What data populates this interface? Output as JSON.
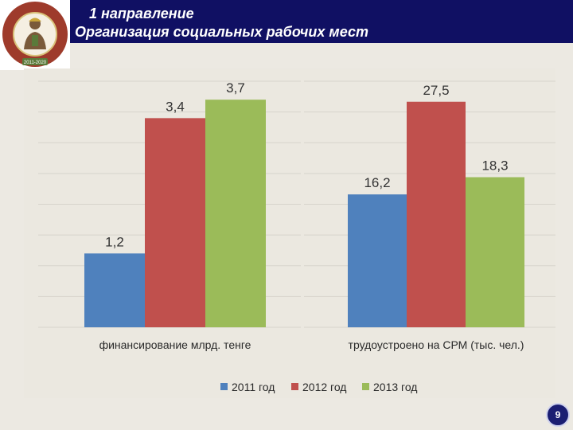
{
  "header": {
    "title_line1": "1 направление",
    "title_line2": "Организация социальных рабочих мест"
  },
  "logo": {
    "ring_text": "ПРОГРАММА ЗАНЯТОСТИ",
    "years": "2011-2020"
  },
  "colors": {
    "header_bg": "#101063",
    "series_2011": "#4f81bd",
    "series_2012": "#c0504d",
    "series_2013": "#9bbb59"
  },
  "chart_data": [
    {
      "type": "bar",
      "categories": [
        "финансирование млрд. тенге"
      ],
      "series": [
        {
          "name": "2011 год",
          "values": [
            1.2
          ]
        },
        {
          "name": "2012 год",
          "values": [
            3.4
          ]
        },
        {
          "name": "2013 год",
          "values": [
            3.7
          ]
        }
      ],
      "data_labels": [
        "1,2",
        "3,4",
        "3,7"
      ],
      "ylim": [
        0,
        4
      ],
      "grid": true
    },
    {
      "type": "bar",
      "categories": [
        "трудоустроено на СРМ (тыс. чел.)"
      ],
      "series": [
        {
          "name": "2011 год",
          "values": [
            16.2
          ]
        },
        {
          "name": "2012 год",
          "values": [
            27.5
          ]
        },
        {
          "name": "2013 год",
          "values": [
            18.3
          ]
        }
      ],
      "data_labels": [
        "16,2",
        "27,5",
        "18,3"
      ],
      "ylim": [
        0,
        30
      ],
      "grid": true
    }
  ],
  "legend": {
    "items": [
      "2011 год",
      "2012 год",
      "2013 год"
    ],
    "placement": "bottom"
  },
  "page_number": "9"
}
